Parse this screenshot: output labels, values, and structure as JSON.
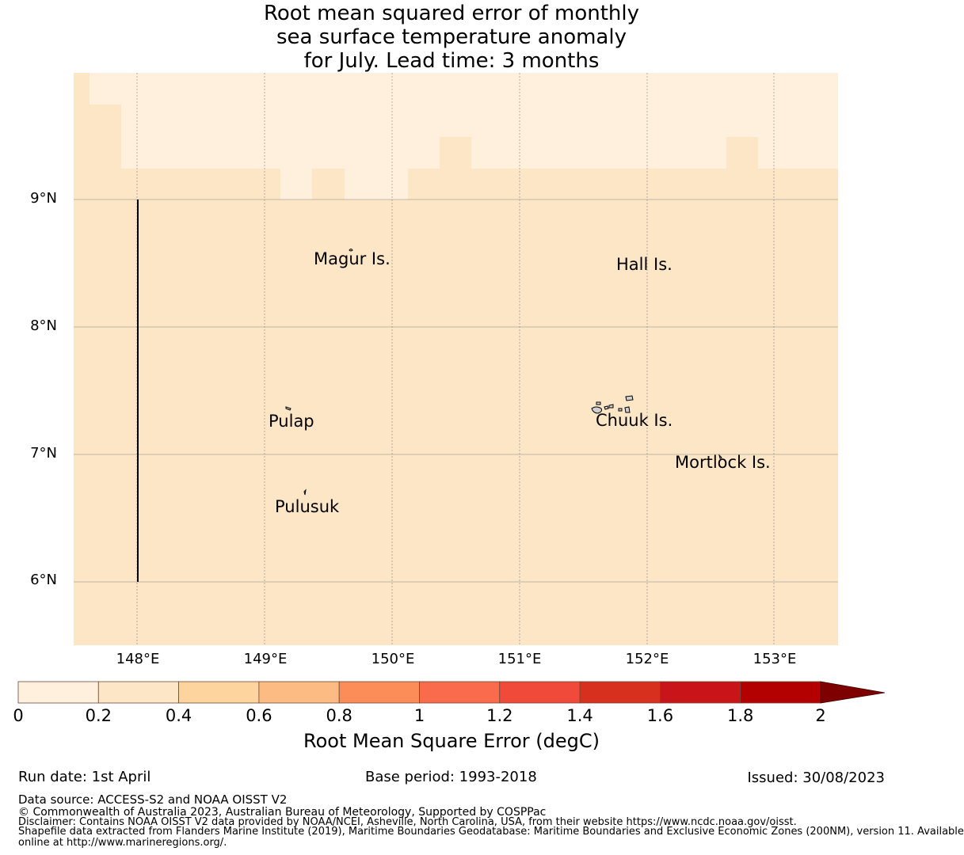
{
  "title": {
    "line1": "Root mean squared error of monthly",
    "line2": "sea surface temperature anomaly",
    "line3": "for July. Lead time: 3 months"
  },
  "map": {
    "lat_labels": [
      "9°N",
      "8°N",
      "7°N",
      "6°N"
    ],
    "lon_labels": [
      "148°E",
      "149°E",
      "150°E",
      "151°E",
      "152°E",
      "153°E"
    ],
    "islands": [
      {
        "name": "Magur Is."
      },
      {
        "name": "Hall Is."
      },
      {
        "name": "Pulap"
      },
      {
        "name": "Chuuk Is."
      },
      {
        "name": "Mortlock Is."
      },
      {
        "name": "Pulusuk"
      }
    ],
    "colors": {
      "low": "#fef0dc",
      "mid": "#fde6c6",
      "grid": "#7f7f7f"
    }
  },
  "colorbar": {
    "ticks": [
      "0",
      "0.2",
      "0.4",
      "0.6",
      "0.8",
      "1",
      "1.2",
      "1.4",
      "1.6",
      "1.8",
      "2"
    ],
    "colors": [
      "#fef0dc",
      "#fde6c6",
      "#fdd49e",
      "#fdbb84",
      "#fc8d59",
      "#f96b4c",
      "#ef4a3a",
      "#d7301f",
      "#c9141a",
      "#b30000",
      "#7f0000"
    ],
    "label": "Root Mean Square Error (degC)"
  },
  "footer": {
    "run_date": "Run date: 1st April",
    "base_period": "Base period: 1993-2018",
    "issued": "Issued: 30/08/2023",
    "data_source": "Data source: ACCESS-S2 and NOAA OISST V2",
    "copyright": "© Commonwealth of Australia 2023, Australian Bureau of Meteorology, Supported by COSPPac",
    "disclaimer": "Disclaimer: Contains NOAA OISST V2 data provided by NOAA/NCEI, Asheville, North Carolina, USA, from their website https://www.ncdc.noaa.gov/oisst.",
    "shapefile_1": "Shapefile data extracted from Flanders Marine Institute (2019), Maritime Boundaries Geodatabase: Maritime Boundaries and Exclusive Economic Zones (200NM), version 11. Available",
    "shapefile_2": "online at http://www.marineregions.org/."
  }
}
